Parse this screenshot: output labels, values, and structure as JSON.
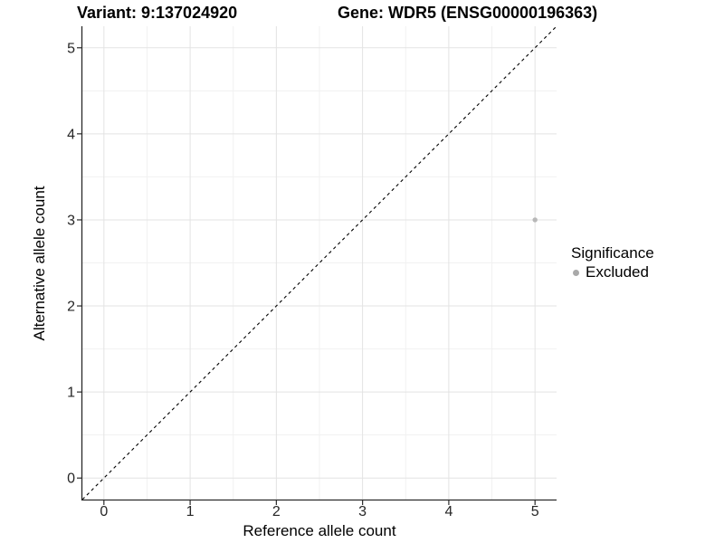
{
  "title": {
    "variant": "Variant: 9:137024920",
    "gene": "Gene: WDR5 (ENSG00000196363)"
  },
  "colors": {
    "point": "#b8b8b8",
    "legend_key": "#a9a9a9",
    "grid_major": "#e3e3e3",
    "grid_minor": "#f1f1f1",
    "axis": "#2a2a2a",
    "tick_text": "#262626",
    "identity_line": "#000000",
    "background": "#ffffff"
  },
  "chart_data": {
    "type": "scatter",
    "title": "Variant: 9:137024920    Gene: WDR5 (ENSG00000196363)",
    "xlabel": "Reference allele count",
    "ylabel": "Alternative allele count",
    "xlim": [
      -0.25,
      5.25
    ],
    "ylim": [
      -0.25,
      5.25
    ],
    "xticks": [
      0,
      1,
      2,
      3,
      4,
      5
    ],
    "yticks": [
      0,
      1,
      2,
      3,
      4,
      5
    ],
    "grid": "major and minor gridlines on white panel",
    "reference_line": {
      "kind": "identity y=x",
      "style": "dashed",
      "color": "#000000"
    },
    "points": [
      {
        "x": 5,
        "y": 3,
        "series": "Excluded"
      }
    ],
    "series": [
      {
        "name": "Excluded",
        "color": "#b8b8b8"
      }
    ],
    "legend": {
      "title": "Significance",
      "position": "right",
      "items": [
        {
          "label": "Excluded",
          "color": "#a9a9a9"
        }
      ]
    }
  }
}
